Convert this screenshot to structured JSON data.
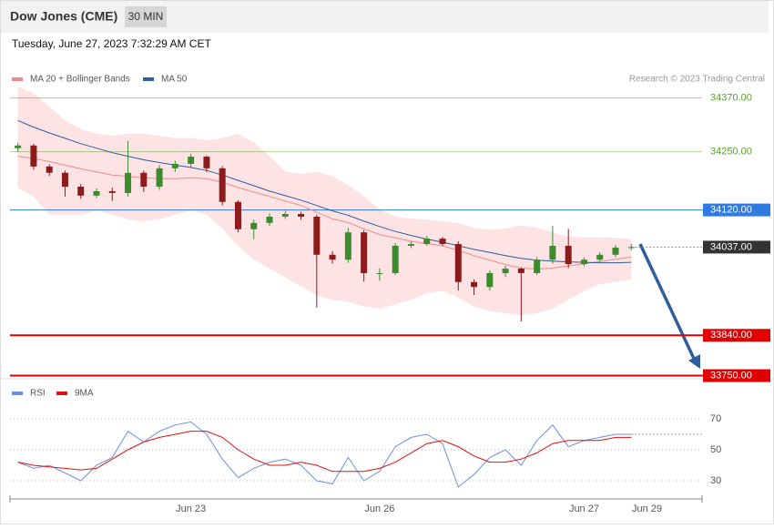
{
  "header": {
    "title": "Dow Jones (CME)",
    "interval": "30 MIN",
    "timestamp": "Tuesday, June 27, 2023 7:32:29 AM CET"
  },
  "chart_data": [
    {
      "type": "candlestick",
      "categories": [
        null,
        null,
        null,
        null,
        null,
        null,
        null,
        null,
        null,
        null,
        null,
        "Jun 23",
        null,
        null,
        null,
        null,
        null,
        null,
        null,
        null,
        null,
        null,
        null,
        "Jun 26",
        null,
        null,
        null,
        null,
        null,
        null,
        null,
        null,
        null,
        null,
        null,
        null,
        "Jun 27",
        null,
        null,
        null,
        "Jun 29",
        null,
        null,
        null
      ],
      "open": [
        34258,
        34264,
        34217,
        34203,
        34172,
        34152,
        34162,
        34158,
        34203,
        34172,
        34213,
        34223,
        34239,
        34213,
        34138,
        34077,
        34091,
        34105,
        34111,
        34105,
        34020,
        34009,
        34070,
        33979,
        33979,
        34040,
        34044,
        34056,
        34044,
        33959,
        33948,
        33979,
        33989,
        33979,
        34009,
        34040,
        33999,
        34009,
        34020,
        34036,
        null,
        null,
        null,
        null
      ],
      "high": [
        34270,
        34268,
        34222,
        34208,
        34178,
        34168,
        34170,
        34274,
        34208,
        34220,
        34230,
        34245,
        34242,
        34218,
        34142,
        34098,
        34112,
        34118,
        34116,
        34110,
        34028,
        34080,
        34075,
        33990,
        34046,
        34050,
        34062,
        34060,
        34050,
        33965,
        33985,
        33995,
        33992,
        34015,
        34085,
        34078,
        34014,
        34026,
        34042,
        34044,
        null,
        null,
        null,
        null
      ],
      "low": [
        34250,
        34210,
        34196,
        34150,
        34145,
        34147,
        34140,
        34150,
        34160,
        34165,
        34205,
        34215,
        34205,
        34130,
        34070,
        34055,
        34085,
        34100,
        34098,
        33902,
        34000,
        34002,
        33960,
        33962,
        33975,
        34035,
        34040,
        34040,
        33940,
        33930,
        33940,
        33970,
        33871,
        33975,
        34000,
        33990,
        33995,
        34002,
        34015,
        34030,
        null,
        null,
        null,
        null
      ],
      "close": [
        34264,
        34217,
        34203,
        34172,
        34152,
        34162,
        34158,
        34203,
        34172,
        34213,
        34223,
        34239,
        34213,
        34138,
        34077,
        34091,
        34105,
        34111,
        34105,
        34020,
        34009,
        34070,
        33979,
        33979,
        34040,
        34044,
        34056,
        34044,
        33959,
        33948,
        33979,
        33989,
        33979,
        34009,
        34040,
        33999,
        34009,
        34020,
        34036,
        34037,
        null,
        null,
        null,
        null
      ],
      "up_color": "#3d8b2f",
      "down_color": "#8e1b1b",
      "series": [
        {
          "name": "MA 20 + Bollinger Bands",
          "color": "#f08a86",
          "values": [
            34240,
            34235,
            34228,
            34220,
            34212,
            34205,
            34198,
            34195,
            34192,
            34190,
            34190,
            34192,
            34190,
            34182,
            34170,
            34160,
            34150,
            34140,
            34130,
            34115,
            34100,
            34092,
            34078,
            34065,
            34058,
            34050,
            34045,
            34040,
            34030,
            34018,
            34008,
            33998,
            33990,
            33988,
            33990,
            33995,
            34000,
            34005,
            34010,
            34015,
            null,
            null,
            null,
            null
          ]
        },
        {
          "name": "MA 50",
          "color": "#2f5d9e",
          "values": [
            34320,
            34305,
            34292,
            34280,
            34268,
            34258,
            34248,
            34240,
            34232,
            34226,
            34220,
            34215,
            34208,
            34198,
            34186,
            34174,
            34162,
            34152,
            34142,
            34130,
            34118,
            34108,
            34095,
            34083,
            34072,
            34063,
            34055,
            34048,
            34040,
            34032,
            34025,
            34018,
            34012,
            34008,
            34006,
            34004,
            34003,
            34002,
            34002,
            34003,
            null,
            null,
            null,
            null
          ]
        }
      ],
      "bands": {
        "color": "#fde3e3",
        "upper": [
          34395,
          34380,
          34350,
          34320,
          34300,
          34290,
          34285,
          34290,
          34290,
          34285,
          34280,
          34280,
          34275,
          34280,
          34290,
          34270,
          34240,
          34205,
          34200,
          34205,
          34195,
          34175,
          34150,
          34120,
          34105,
          34100,
          34098,
          34095,
          34090,
          34080,
          34075,
          34078,
          34085,
          34080,
          34070,
          34060,
          34058,
          34058,
          34057,
          34055,
          null,
          null,
          null,
          null
        ],
        "lower": [
          34170,
          34150,
          34110,
          34110,
          34110,
          34120,
          34110,
          34100,
          34095,
          34100,
          34110,
          34120,
          34110,
          34080,
          34040,
          34010,
          33990,
          33970,
          33950,
          33930,
          33920,
          33915,
          33905,
          33900,
          33910,
          33920,
          33935,
          33940,
          33925,
          33905,
          33895,
          33890,
          33885,
          33890,
          33900,
          33920,
          33940,
          33955,
          33960,
          33965,
          null,
          null,
          null,
          null
        ]
      },
      "ylim": [
        33745,
        34410
      ],
      "levels": [
        {
          "value": 34370,
          "label": "34370.00",
          "color": "#5aa02c",
          "style": "solid",
          "tag": false
        },
        {
          "value": 34250,
          "label": "34250.00",
          "color": "#5aa02c",
          "style": "solid",
          "tag": false
        },
        {
          "value": 34120,
          "label": "34120.00",
          "color": "#2f7be0",
          "style": "solid",
          "tag": true
        },
        {
          "value": 34037,
          "label": "34037.00",
          "color": "#333333",
          "style": "dotted",
          "tag": true
        },
        {
          "value": 33840,
          "label": "33840.00",
          "color": "#e00000",
          "style": "thick",
          "tag": true
        },
        {
          "value": 33750,
          "label": "33750.00",
          "color": "#e00000",
          "style": "thick",
          "tag": true
        }
      ],
      "credit": "Research © 2023 Trading Central"
    },
    {
      "type": "line",
      "series": [
        {
          "name": "RSI",
          "color": "#6d8fe0",
          "values": [
            42,
            38,
            40,
            35,
            30,
            40,
            45,
            62,
            55,
            62,
            66,
            68,
            60,
            44,
            32,
            38,
            42,
            44,
            40,
            30,
            28,
            45,
            30,
            36,
            52,
            58,
            60,
            54,
            26,
            34,
            45,
            50,
            40,
            56,
            66,
            52,
            56,
            58,
            60,
            60,
            null,
            null,
            null,
            null
          ]
        },
        {
          "name": "9MA",
          "color": "#e01010",
          "values": [
            42,
            40,
            39,
            38,
            37,
            38,
            44,
            50,
            55,
            58,
            60,
            62,
            62,
            58,
            50,
            44,
            40,
            40,
            42,
            40,
            36,
            36,
            36,
            38,
            42,
            48,
            54,
            56,
            52,
            46,
            42,
            42,
            44,
            48,
            54,
            56,
            56,
            56,
            58,
            58,
            null,
            null,
            null,
            null
          ]
        }
      ],
      "ylim": [
        20,
        80
      ],
      "yticks": [
        30,
        50,
        70
      ],
      "grid": true
    }
  ]
}
